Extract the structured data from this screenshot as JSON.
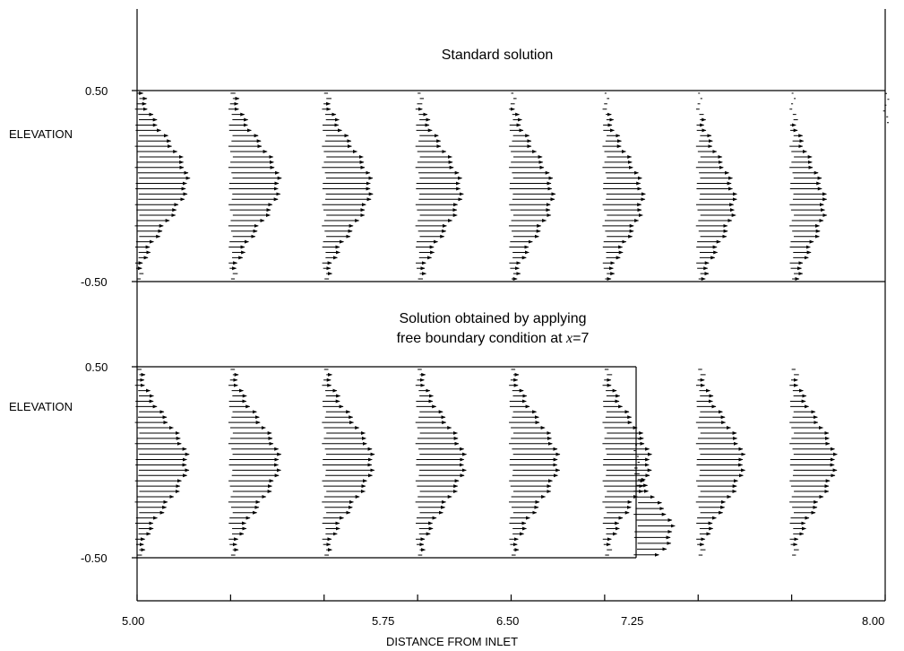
{
  "chart_data": [
    {
      "type": "vector_field",
      "panel": "top",
      "title": "Standard solution",
      "ylabel": "ELEVATION",
      "y_ticks": [
        "0.50",
        "-0.50"
      ],
      "ylim": [
        -0.5,
        0.5
      ],
      "xlim": [
        5.0,
        8.0
      ],
      "profile_x": [
        5.0,
        5.375,
        5.75,
        6.125,
        6.5,
        6.875,
        7.25,
        7.625
      ],
      "peak_velocity": [
        0.3,
        0.29,
        0.28,
        0.26,
        0.25,
        0.23,
        0.22,
        0.2
      ],
      "partial_profile_x": [
        8.0
      ]
    },
    {
      "type": "vector_field",
      "panel": "bottom",
      "title_lines": [
        "Solution obtained by applying",
        "free boundary condition at x=7"
      ],
      "title_italic_var": "x",
      "ylabel": "ELEVATION",
      "y_ticks": [
        "0.50",
        "-0.50"
      ],
      "ylim": [
        -0.5,
        0.5
      ],
      "xlim": [
        5.0,
        8.0
      ],
      "domain_end_x": 7.0,
      "profile_x": [
        5.0,
        5.375,
        5.75,
        6.125,
        6.5,
        6.875,
        7.25,
        7.625
      ],
      "peak_velocity": [
        0.3,
        0.29,
        0.29,
        0.28,
        0.28,
        0.27,
        0.27,
        0.26
      ],
      "outflow_profile_x": 7.0
    }
  ],
  "x_axis": {
    "label": "DISTANCE FROM INLET",
    "tick_labels": [
      "5.00",
      "5.75",
      "6.50",
      "7.25",
      "8.00"
    ],
    "ticks": [
      5.0,
      5.375,
      5.75,
      6.125,
      6.5,
      6.875,
      7.25,
      7.625,
      8.0
    ]
  }
}
